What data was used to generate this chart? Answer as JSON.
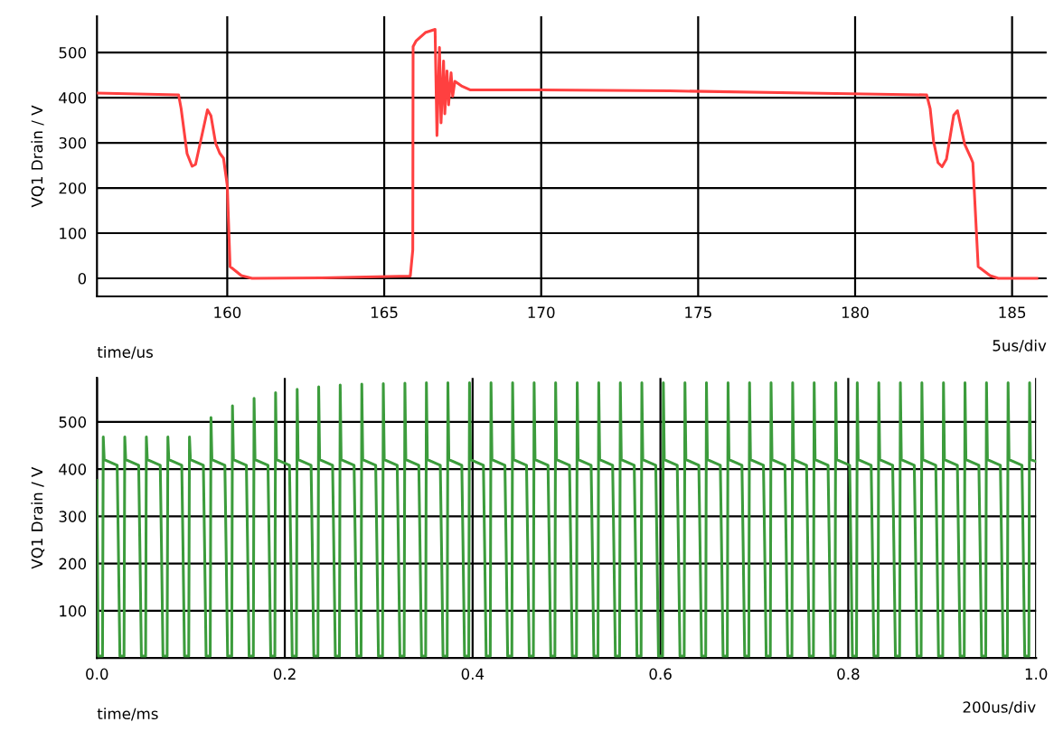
{
  "chart_data": [
    {
      "type": "line",
      "ylabel": "VQ1 Drain / V",
      "xlabel": "time/us",
      "annotations": [
        "5us/div"
      ],
      "x": [
        155.85,
        158.45,
        158.53,
        158.72,
        158.88,
        158.99,
        159.37,
        159.48,
        159.63,
        159.76,
        159.88,
        160.0,
        160.09,
        160.45,
        160.79,
        163.0,
        165.83,
        165.91,
        165.92,
        166.02,
        166.31,
        166.62,
        166.68,
        166.76,
        166.81,
        166.89,
        166.93,
        167.0,
        167.05,
        167.13,
        167.18,
        167.25,
        167.46,
        167.75,
        168.04,
        170.0,
        174.09,
        178.5,
        182.28,
        182.39,
        182.5,
        182.64,
        182.77,
        182.91,
        183.14,
        183.26,
        183.49,
        183.68,
        183.75,
        183.92,
        184.3,
        184.56,
        185.79
      ],
      "series": [
        {
          "color": "#ff4040",
          "values": [
            410,
            406,
            376,
            276,
            248,
            252,
            373,
            360,
            299,
            277,
            266,
            206,
            26,
            6,
            0,
            1,
            5,
            63,
            513,
            526,
            544,
            551,
            316,
            511,
            344,
            481,
            364,
            459,
            384,
            455,
            403,
            436,
            426,
            417,
            417,
            417,
            415,
            410,
            406,
            376,
            303,
            256,
            247,
            264,
            361,
            371,
            297,
            268,
            256,
            26,
            6,
            0,
            0
          ]
        }
      ],
      "xlim": [
        155.85,
        186.1
      ],
      "ylim": [
        -40,
        580
      ],
      "xticks": [
        160,
        165,
        170,
        175,
        180,
        185
      ],
      "yticks": [
        0,
        100,
        200,
        300,
        400,
        500
      ],
      "grid": true
    },
    {
      "type": "line",
      "ylabel": "VQ1 Drain / V",
      "xlabel": "time/ms",
      "annotations": [
        "200us/div"
      ],
      "x": [
        0,
        0.0013,
        0.0059,
        0.0067,
        0.0077,
        0.0215,
        0.0227,
        0.0244,
        0.0288,
        0.0296,
        0.0306,
        0.0444,
        0.0456,
        0.0473,
        0.0518,
        0.0526,
        0.0536,
        0.0674,
        0.0686,
        0.0703,
        0.0747,
        0.0755,
        0.0765,
        0.0903,
        0.0915,
        0.0932,
        0.0977,
        0.0985,
        0.0995,
        0.1133,
        0.1145,
        0.1162,
        0.1206,
        0.1214,
        0.1224,
        0.1362,
        0.1374,
        0.1391,
        0.1435,
        0.1443,
        0.1453,
        0.1591,
        0.1603,
        0.162,
        0.1665,
        0.1673,
        0.1683,
        0.1821,
        0.1833,
        0.185,
        0.1894,
        0.1902,
        0.1912,
        0.205,
        0.2062,
        0.2079,
        0.2124,
        0.2132,
        0.2142,
        0.228,
        0.2292,
        0.2309,
        0.2353,
        0.2361,
        0.2371,
        0.2509,
        0.2521,
        0.2538,
        0.2582,
        0.259,
        0.26,
        0.2738,
        0.275,
        0.2767,
        0.2812,
        0.282,
        0.283,
        0.2968,
        0.298,
        0.2997,
        0.3041,
        0.3049,
        0.3059,
        0.3197,
        0.3209,
        0.3226,
        0.3271,
        0.3279,
        0.3289,
        0.3427,
        0.3439,
        0.3456,
        0.35,
        0.3508,
        0.3518,
        0.3656,
        0.3668,
        0.3685,
        0.3729,
        0.3737,
        0.3747,
        0.3885,
        0.3897,
        0.3914,
        0.3959,
        0.3967,
        0.3977,
        0.4115,
        0.4127,
        0.4144,
        0.4188,
        0.4196,
        0.4206,
        0.4344,
        0.4356,
        0.4373,
        0.4418,
        0.4426,
        0.4436,
        0.4574,
        0.4586,
        0.4603,
        0.4647,
        0.4655,
        0.4665,
        0.4803,
        0.4815,
        0.4832,
        0.4876,
        0.4884,
        0.4894,
        0.5032,
        0.5044,
        0.5061,
        0.5106,
        0.5114,
        0.5124,
        0.5262,
        0.5274,
        0.5291,
        0.5335,
        0.5343,
        0.5353,
        0.5491,
        0.5503,
        0.552,
        0.5565,
        0.5573,
        0.5583,
        0.5721,
        0.5733,
        0.575,
        0.5794,
        0.5802,
        0.5812,
        0.595,
        0.5962,
        0.5979,
        0.6023,
        0.6031,
        0.6041,
        0.6179,
        0.6191,
        0.6208,
        0.6253,
        0.6261,
        0.6271,
        0.6409,
        0.6421,
        0.6438,
        0.6482,
        0.649,
        0.65,
        0.6638,
        0.665,
        0.6667,
        0.6712,
        0.672,
        0.673,
        0.6868,
        0.688,
        0.6897,
        0.6941,
        0.6949,
        0.6959,
        0.7097,
        0.7109,
        0.7126,
        0.717,
        0.7178,
        0.7188,
        0.7326,
        0.7338,
        0.7355,
        0.74,
        0.7408,
        0.7418,
        0.7556,
        0.7568,
        0.7585,
        0.7629,
        0.7637,
        0.7647,
        0.7785,
        0.7797,
        0.7814,
        0.7859,
        0.7867,
        0.7877,
        0.8015,
        0.8027,
        0.8044,
        0.8088,
        0.8096,
        0.8106,
        0.8244,
        0.8256,
        0.8273,
        0.8317,
        0.8325,
        0.8335,
        0.8473,
        0.8485,
        0.8502,
        0.8547,
        0.8555,
        0.8565,
        0.8703,
        0.8715,
        0.8732,
        0.8776,
        0.8784,
        0.8794,
        0.8932,
        0.8944,
        0.8961,
        0.9006,
        0.9014,
        0.9024,
        0.9162,
        0.9174,
        0.9191,
        0.9235,
        0.9243,
        0.9253,
        0.9391,
        0.9403,
        0.942,
        0.9464,
        0.9472,
        0.9482,
        0.962,
        0.9632,
        0.9649,
        0.9694,
        0.9702,
        0.9712,
        0.985,
        0.9862,
        0.9879,
        0.9923,
        0.9931,
        0.9941,
        1.0
      ],
      "series": [
        {
          "color": "#3c9c3c",
          "values": [
            376,
            4,
            4,
            468,
            420,
            408,
            249,
            4,
            4,
            468,
            420,
            408,
            249,
            4,
            4,
            468,
            420,
            408,
            249,
            4,
            4,
            468,
            420,
            408,
            249,
            4,
            4,
            468,
            420,
            408,
            249,
            4,
            4,
            509,
            420,
            408,
            249,
            4,
            4,
            534,
            420,
            408,
            249,
            4,
            4,
            550,
            420,
            408,
            249,
            4,
            4,
            562,
            420,
            408,
            249,
            4,
            4,
            569,
            420,
            408,
            249,
            4,
            4,
            574,
            420,
            408,
            249,
            4,
            4,
            578,
            420,
            408,
            249,
            4,
            4,
            580,
            420,
            408,
            249,
            4,
            4,
            581,
            420,
            408,
            249,
            4,
            4,
            582,
            420,
            408,
            249,
            4,
            4,
            583,
            420,
            408,
            249,
            4,
            4,
            583,
            420,
            408,
            249,
            4,
            4,
            583,
            420,
            408,
            249,
            4,
            4,
            583,
            420,
            408,
            249,
            4,
            4,
            583,
            420,
            408,
            249,
            4,
            4,
            583,
            420,
            408,
            249,
            4,
            4,
            583,
            420,
            408,
            249,
            4,
            4,
            583,
            420,
            408,
            249,
            4,
            4,
            583,
            420,
            408,
            249,
            4,
            4,
            583,
            420,
            408,
            249,
            4,
            4,
            583,
            420,
            408,
            249,
            4,
            4,
            583,
            420,
            408,
            249,
            4,
            4,
            583,
            420,
            408,
            249,
            4,
            4,
            583,
            420,
            408,
            249,
            4,
            4,
            583,
            420,
            408,
            249,
            4,
            4,
            583,
            420,
            408,
            249,
            4,
            4,
            583,
            420,
            408,
            249,
            4,
            4,
            583,
            420,
            408,
            249,
            4,
            4,
            583,
            420,
            408,
            249,
            4,
            4,
            583,
            420,
            408,
            249,
            4,
            4,
            583,
            420,
            408,
            249,
            4,
            4,
            583,
            420,
            408,
            249,
            4,
            4,
            583,
            420,
            408,
            249,
            4,
            4,
            583,
            420,
            408,
            249,
            4,
            4,
            583,
            420,
            408,
            249,
            4,
            4,
            583,
            420,
            408,
            249,
            4,
            4,
            583,
            420,
            408,
            249,
            4,
            4,
            583,
            420,
            408,
            249,
            4,
            4,
            583,
            420,
            416
          ]
        }
      ],
      "xlim": [
        0,
        1.0
      ],
      "ylim": [
        0,
        593
      ],
      "xticks": [
        {
          "value": 0,
          "label": "0.0"
        },
        0.2,
        0.4,
        0.6,
        0.8,
        {
          "value": 1.0,
          "label": "1.0"
        }
      ],
      "yticks": [
        100,
        200,
        300,
        400,
        500
      ],
      "grid": true
    }
  ]
}
